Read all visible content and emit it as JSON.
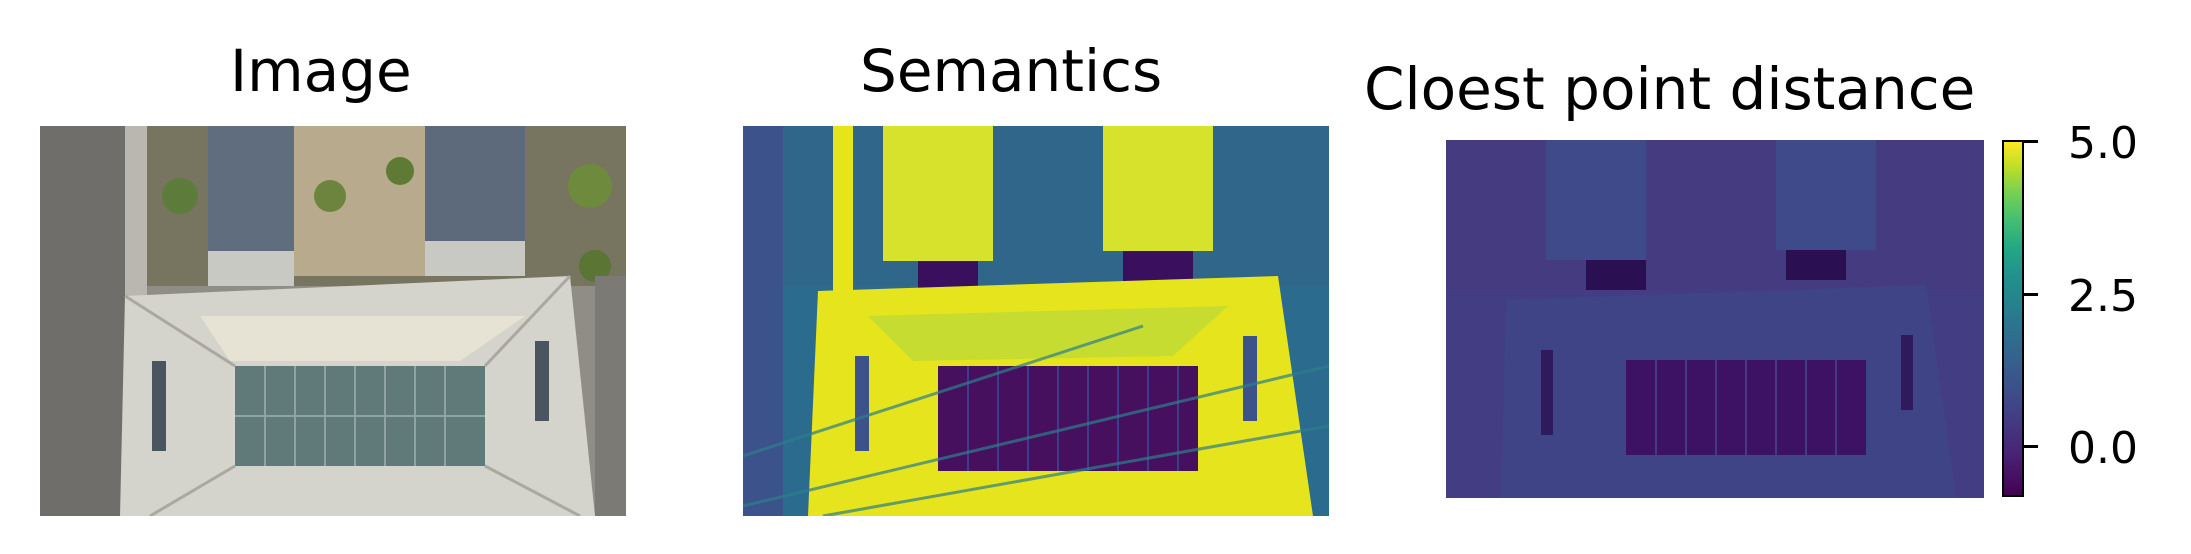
{
  "panels": [
    {
      "title": "Image"
    },
    {
      "title": "Semantics"
    },
    {
      "title": "Cloest point distance"
    }
  ],
  "colorbar": {
    "colormap": "viridis",
    "ticks": [
      "5.0",
      "2.5",
      "0.0"
    ],
    "range": [
      -0.8,
      5.0
    ]
  },
  "colors": {
    "viridis_low": "#440154",
    "viridis_mid": "#21918c",
    "viridis_high": "#fde725"
  }
}
